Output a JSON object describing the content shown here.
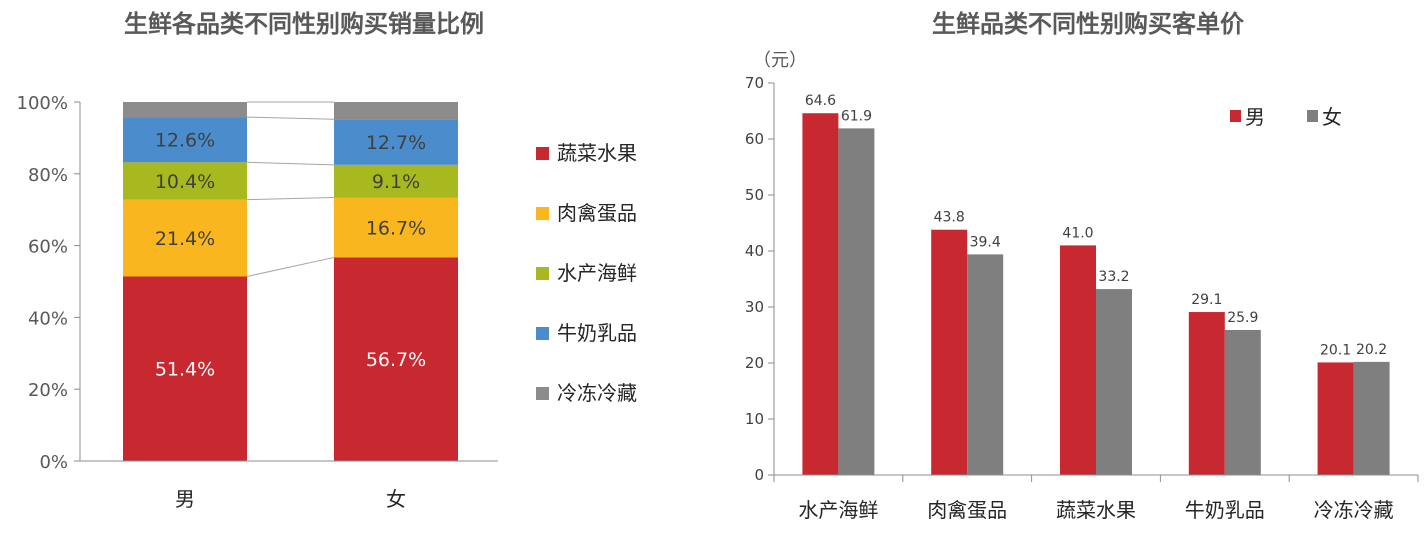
{
  "colors": {
    "蔬菜水果": "#c8282f",
    "肉禽蛋品": "#f9b61e",
    "水产海鲜": "#a8b920",
    "牛奶乳品": "#4b8ccc",
    "冷冻冷藏": "#8c8c8c",
    "male": "#c8282f",
    "female": "#7f7f7f"
  },
  "chart_data": [
    {
      "type": "bar",
      "stacked": true,
      "percent": true,
      "title": "生鲜各品类不同性别购买销量比例",
      "categories": [
        "男",
        "女"
      ],
      "series": [
        {
          "name": "蔬菜水果",
          "values": [
            51.4,
            56.7
          ],
          "labels": [
            "51.4%",
            "56.7%"
          ]
        },
        {
          "name": "肉禽蛋品",
          "values": [
            21.4,
            16.7
          ],
          "labels": [
            "21.4%",
            "16.7%"
          ]
        },
        {
          "name": "水产海鲜",
          "values": [
            10.4,
            9.1
          ],
          "labels": [
            "10.4%",
            "9.1%"
          ]
        },
        {
          "name": "牛奶乳品",
          "values": [
            12.6,
            12.7
          ],
          "labels": [
            "12.6%",
            "12.7%"
          ]
        },
        {
          "name": "冷冻冷藏",
          "values": [
            4.2,
            4.8
          ],
          "labels": [
            "",
            ""
          ]
        }
      ],
      "yticks": [
        "0%",
        "20%",
        "40%",
        "60%",
        "80%",
        "100%"
      ],
      "ylim": [
        0,
        100
      ],
      "legend": "right"
    },
    {
      "type": "bar",
      "title": "生鲜品类不同性别购买客单价",
      "ylabel": "（元）",
      "categories": [
        "水产海鲜",
        "肉禽蛋品",
        "蔬菜水果",
        "牛奶乳品",
        "冷冻冷藏"
      ],
      "series": [
        {
          "name": "男",
          "values": [
            64.6,
            43.8,
            41.0,
            29.1,
            20.1
          ],
          "labels": [
            "64.6",
            "43.8",
            "41.0",
            "29.1",
            "20.1"
          ]
        },
        {
          "name": "女",
          "values": [
            61.9,
            39.4,
            33.2,
            25.9,
            20.2
          ],
          "labels": [
            "61.9",
            "39.4",
            "33.2",
            "25.9",
            "20.2"
          ]
        }
      ],
      "yticks": [
        "0",
        "10",
        "20",
        "30",
        "40",
        "50",
        "60",
        "70"
      ],
      "ylim": [
        0,
        70
      ],
      "legend": "top-right"
    }
  ]
}
